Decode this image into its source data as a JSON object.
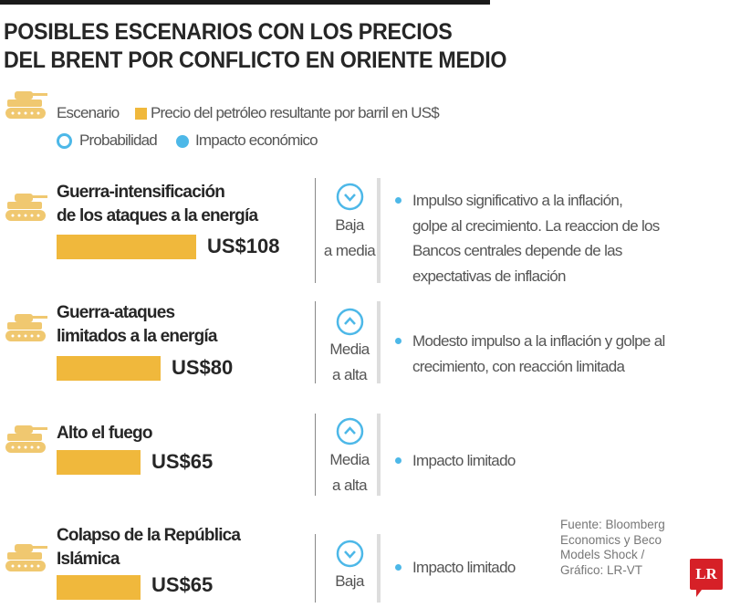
{
  "title_lines": [
    "POSIBLES ESCENARIOS CON LOS PRECIOS",
    "DEL BRENT POR CONFLICTO EN ORIENTE MEDIO"
  ],
  "legend": {
    "scenario": "Escenario",
    "price": "Precio del petróleo resultante por barril en US$",
    "probability": "Probabilidad",
    "impact": "Impacto económico"
  },
  "colors": {
    "bar": "#f0b83c",
    "accent": "#4db8e8",
    "logo": "#d62027"
  },
  "chart_data": {
    "type": "bar",
    "categories": [
      "Guerra-intensificación de los ataques a la energía",
      "Guerra-ataques limitados a la energía",
      "Alto el fuego",
      "Colapso de la República Islámica"
    ],
    "values": [
      108,
      80,
      65,
      65
    ],
    "unit": "US$"
  },
  "scenarios": [
    {
      "title": [
        "Guerra-intensificación",
        "de los ataques a la energía"
      ],
      "price": "US$108",
      "value": 108,
      "prob_icon": "chevron-down",
      "probability": [
        "Baja",
        "a media"
      ],
      "impact": [
        "Impulso significativo a la inflación,",
        "golpe al crecimiento. La reaccion de los",
        "Bancos centrales depende de las",
        "expectativas de inflación"
      ]
    },
    {
      "title": [
        "Guerra-ataques",
        "limitados a la energía"
      ],
      "price": "US$80",
      "value": 80,
      "prob_icon": "chevron-up",
      "probability": [
        "Media",
        "a alta"
      ],
      "impact": [
        "Modesto impulso a la inflación y golpe al",
        "crecimiento, con reacción limitada"
      ]
    },
    {
      "title": [
        "Alto el fuego"
      ],
      "price": "US$65",
      "value": 65,
      "prob_icon": "chevron-up",
      "probability": [
        "Media",
        "a alta"
      ],
      "impact": [
        "Impacto limitado"
      ]
    },
    {
      "title": [
        "Colapso de la República",
        "Islámica"
      ],
      "price": "US$65",
      "value": 65,
      "prob_icon": "chevron-down",
      "probability": [
        "Baja"
      ],
      "impact": [
        "Impacto limitado"
      ]
    }
  ],
  "source": [
    "Fuente: Bloomberg",
    "Economics y Beco",
    "Models Shock /",
    "Gráfico: LR-VT"
  ],
  "logo_text": "LR"
}
